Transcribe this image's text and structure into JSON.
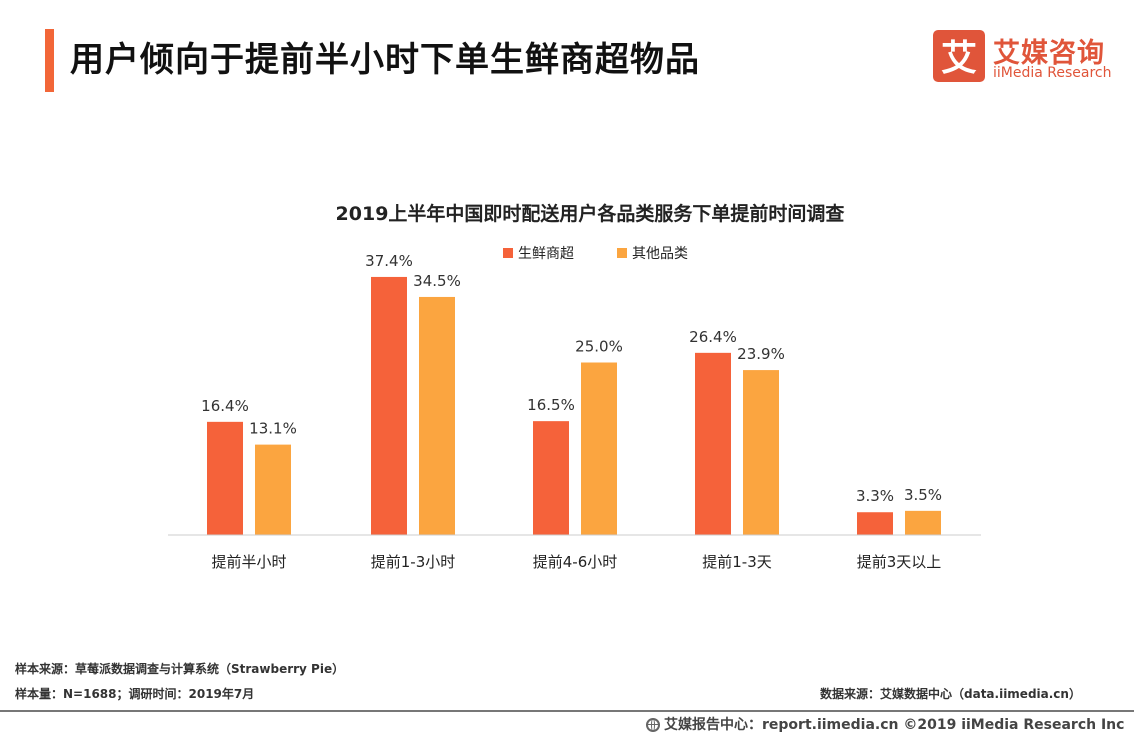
{
  "page": {
    "title": "用户倾向于提前半小时下单生鲜商超物品",
    "accent_color": "#F26638"
  },
  "logo": {
    "glyph": "艾",
    "cn": "艾媒咨询",
    "en": "iiMedia Research",
    "color": "#E0553A"
  },
  "chart_data": {
    "type": "bar",
    "title": "2019上半年中国即时配送用户各品类服务下单提前时间调查",
    "categories": [
      "提前半小时",
      "提前1-3小时",
      "提前4-6小时",
      "提前1-3天",
      "提前3天以上"
    ],
    "series": [
      {
        "name": "生鲜商超",
        "values": [
          16.4,
          37.4,
          16.5,
          26.4,
          3.3
        ],
        "labels": [
          "16.4%",
          "37.4%",
          "16.5%",
          "26.4%",
          "3.3%"
        ],
        "color": "#F5623A"
      },
      {
        "name": "其他品类",
        "values": [
          13.1,
          34.5,
          25.0,
          23.9,
          3.5
        ],
        "labels": [
          "13.1%",
          "34.5%",
          "25.0%",
          "23.9%",
          "3.5%"
        ],
        "color": "#FBA540"
      }
    ],
    "ylim": [
      0,
      40
    ],
    "grid": false,
    "legend_position": "top-center",
    "value_unit": "%"
  },
  "footer": {
    "source_line": "样本来源：草莓派数据调查与计算系统（Strawberry Pie）",
    "sample_line": "样本量：N=1688；调研时间：2019年7月",
    "data_source": "数据来源：艾媒数据中心（data.iimedia.cn）",
    "bottom": "艾媒报告中心：report.iimedia.cn  ©2019  iiMedia Research  Inc"
  }
}
